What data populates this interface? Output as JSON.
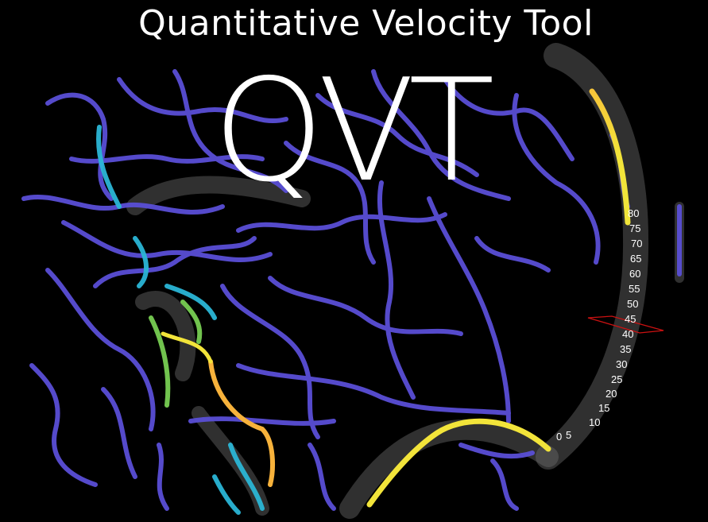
{
  "header": {
    "title": "Quantitative Velocity Tool",
    "logo_text": "QVT"
  },
  "scale": {
    "labels": [
      "80",
      "75",
      "70",
      "65",
      "60",
      "55",
      "50",
      "45",
      "40",
      "35",
      "30",
      "25",
      "20",
      "15",
      "10",
      "5",
      "0"
    ]
  },
  "colors": {
    "background": "#000000",
    "vessel_low": "#5a4fd6",
    "vessel_mid": "#2bb6d6",
    "vessel_high": "#f2e43a",
    "vessel_peak": "#f7b23b",
    "cut_plane": "#cc1111"
  }
}
